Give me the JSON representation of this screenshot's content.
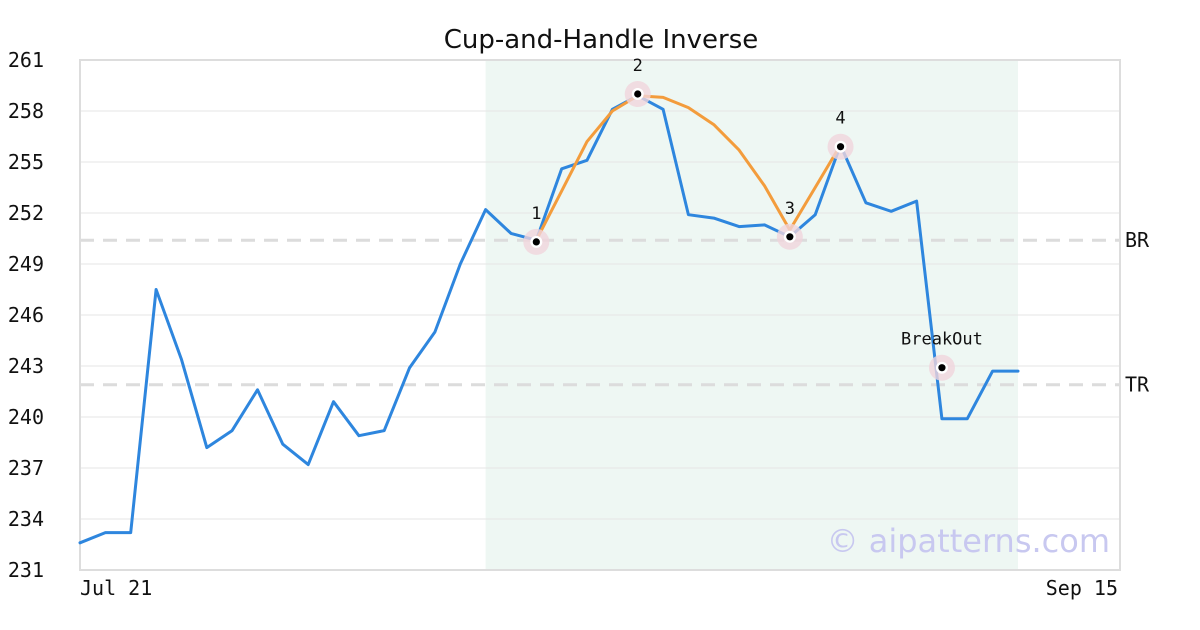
{
  "chart_data": {
    "type": "line",
    "title": "Cup-and-Handle Inverse",
    "xlabel": "",
    "ylabel": "",
    "ylim": [
      231,
      261
    ],
    "yticks": [
      231,
      234,
      237,
      240,
      243,
      246,
      249,
      252,
      255,
      258,
      261
    ],
    "x_tick_labels": [
      "Jul 21",
      "Sep 15"
    ],
    "grid": true,
    "series": [
      {
        "color": "#2e86de",
        "values": [
          232.6,
          233.2,
          233.2,
          247.5,
          243.4,
          238.2,
          239.2,
          241.6,
          238.4,
          237.2,
          240.9,
          238.9,
          239.2,
          242.9,
          245.0,
          249.0,
          252.2,
          250.8,
          250.4,
          254.6,
          255.1,
          258.1,
          258.9,
          258.1,
          251.9,
          251.7,
          251.2,
          251.3,
          250.6,
          251.9,
          256.0,
          252.6,
          252.1,
          252.7,
          239.9,
          239.9,
          242.7,
          242.7
        ]
      },
      {
        "color": "#f39c3c",
        "start_index": 18,
        "values": [
          250.4,
          253.3,
          256.2,
          258.0,
          258.9,
          258.8,
          258.2,
          257.2,
          255.7,
          253.6,
          251.0,
          253.5,
          256.0
        ]
      }
    ],
    "highlight_region": {
      "start_index": 16,
      "end_index": 37,
      "color": "#eef7f3"
    },
    "reference_lines": [
      {
        "label": "BR",
        "value": 250.4
      },
      {
        "label": "TR",
        "value": 241.9
      }
    ],
    "points": [
      {
        "label": "1",
        "index": 18,
        "value": 250.3
      },
      {
        "label": "2",
        "index": 22,
        "value": 259.0
      },
      {
        "label": "3",
        "index": 28,
        "value": 250.6
      },
      {
        "label": "4",
        "index": 30,
        "value": 255.9
      },
      {
        "label": "BreakOut",
        "index": 34,
        "value": 242.9
      }
    ],
    "watermark": "© aipatterns.com"
  }
}
